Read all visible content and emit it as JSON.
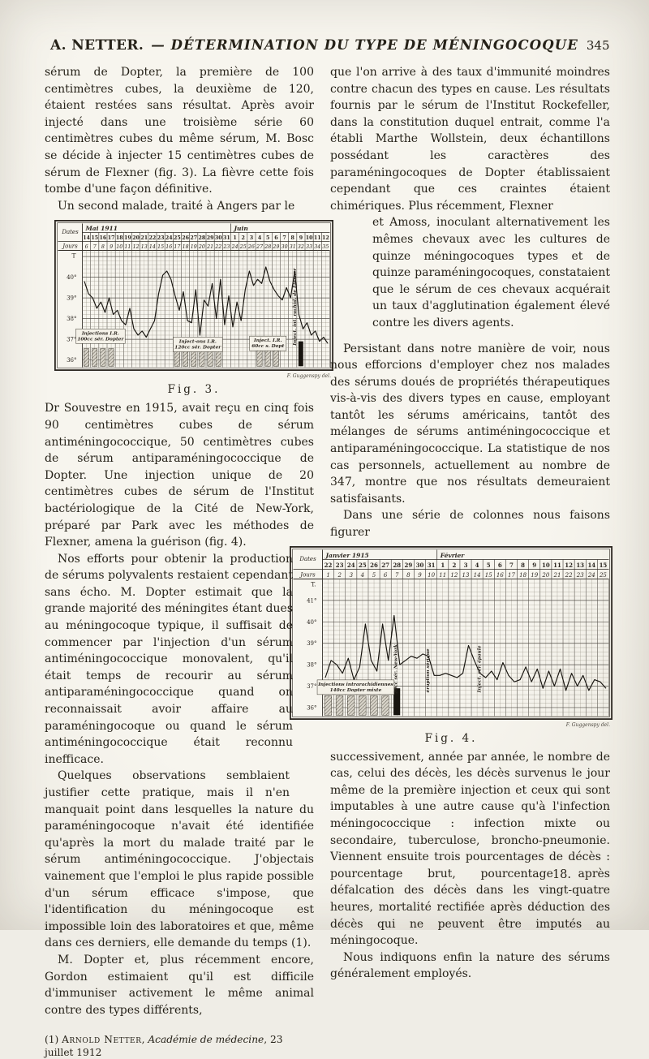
{
  "header": {
    "author": "A. NETTER.",
    "title": "— DÉTERMINATION DU TYPE DE MÉNINGOCOQUE",
    "page_number": "345"
  },
  "left_column": {
    "para1": "sérum de Dopter, la première de 100 centimètres cubes, la deuxième de 120, étaient restées sans résultat. Après avoir injecté dans une troisième série 60 centimètres cubes du même sérum, M. Bosc se décide à injecter 15 centimètres cubes de sérum de Flexner (fig. 3). La fièvre cette fois tombe d'une façon définitive.",
    "para2": "Un second malade, traité à Angers par le",
    "para3": "Dr Souvestre en 1915, avait reçu en cinq fois 90 centimètres cubes de sérum antiméningococcique, 50 centimètres cubes de sérum antiparaméningococcique de Dopter. Une injection unique de 20 centimètres cubes de sérum de l'Institut bactériologique de la Cité de New-York, préparé par Park avec les méthodes de Flexner, amena la guérison (fig. 4).",
    "para4": "Nos efforts pour obtenir la production de sérums polyvalents restaient cependant sans écho. M. Dopter estimait que la grande majorité des méningites étant dues au méningocoque typique, il suffisait de commencer par l'injection d'un sérum antiméningococcique monovalent, qu'il était temps de recourir au sérum antiparaméningococcique quand on reconnaissait avoir affaire au paraméningocoque ou quand le sérum antiméningococcique était reconnu inefficace.",
    "para5": "Quelques observations semblaient justifier cette pratique, mais il n'en manquait point dans lesquelles la nature du paraméningocoque n'avait été identifiée qu'après la mort du malade traité par le sérum antiméningococcique. J'objectais vainement que l'emploi le plus rapide possible d'un sérum efficace s'impose, que l'identification du méningocoque est impossible loin des laboratoires et que, même dans ces derniers, elle demande du temps (1).",
    "para6": "M. Dopter et, plus récemment encore, Gordon estimaient qu'il est difficile d'immuniser activement le même animal contre des types différents,",
    "footnote": {
      "marker": "(1) ",
      "author": "Arnold Netter",
      "sep": ", ",
      "source": "Académie de médecine",
      "tail": ", 23 juillet 1912"
    }
  },
  "right_column": {
    "para1a": "que l'on arrive à des taux d'immunité moindres contre chacun des types en cause. Les résultats fournis par le sérum de l'Institut Rockefeller, dans la constitution duquel entrait, comme l'a établi Marthe Wollstein, deux échantillons possédant les caractères des paraméningocoques de Dopter établissaient cependant que ces craintes étaient chimériques. Plus récemment, Flexner",
    "para1b": "et Amoss, inoculant alternativement les mêmes chevaux avec les cultures de quinze méningocoques types et de quinze paraméningocoques, constataient que le sérum de ces chevaux acquérait un taux d'agglutination également élevé contre les divers agents.",
    "para2": "Persistant dans notre manière de voir, nous nous efforcions d'employer chez nos malades des sérums doués de propriétés thérapeutiques vis-à-vis des divers types en cause, employant tantôt les sérums américains, tantôt des mélanges de sérums antiméningococcique et antiparaméningococcique. La statistique de nos cas personnels, actuellement au nombre de 347, montre que nos résultats demeuraient satisfaisants.",
    "para3": "Dans une série de colonnes nous faisons figurer",
    "para4": "successivement, année par année, le nombre de cas, celui des décès, les décès survenus le jour même de la première injection et ceux qui sont imputables à une autre cause qu'à l'infection méningococcique : infection mixte ou secondaire, tuberculose, broncho-pneumonie. Viennent ensuite trois pourcentages de décès : pourcentage brut, pourcentage après défalcation des décès dans les vingt-quatre heures, mortalité rectifiée après déduction des décès qui ne peuvent être imputés au méningocoque.",
    "para5": "Nous indiquons enfin la nature des sérums généralement employés.",
    "page_mark": "18."
  },
  "figures": {
    "fig3": {
      "caption": "Fig. 3."
    },
    "fig4": {
      "caption": "Fig. 4."
    }
  },
  "chart_data": [
    {
      "type": "line",
      "figure": "Fig. 3.",
      "row_labels": {
        "dates": "Dates",
        "jours": "Jours",
        "temp": "T"
      },
      "months": [
        {
          "label": "Mai 1911",
          "days": 18
        },
        {
          "label": "Juin",
          "days": 12
        }
      ],
      "dates": [
        14,
        15,
        16,
        17,
        18,
        19,
        20,
        21,
        22,
        23,
        24,
        25,
        26,
        27,
        28,
        29,
        30,
        31,
        1,
        2,
        3,
        4,
        5,
        6,
        7,
        8,
        9,
        10,
        11,
        12
      ],
      "jours": [
        6,
        7,
        8,
        9,
        10,
        11,
        12,
        13,
        14,
        15,
        16,
        17,
        18,
        19,
        20,
        21,
        22,
        23,
        24,
        25,
        26,
        27,
        28,
        29,
        30,
        31,
        32,
        33,
        34,
        35
      ],
      "y_ticks": [
        "40°",
        "39°",
        "38°",
        "37°",
        "36°"
      ],
      "ylim": [
        36,
        41
      ],
      "readings_per_day": 2,
      "temperatures": [
        39.8,
        39.2,
        39.0,
        38.5,
        38.8,
        38.3,
        39.0,
        38.2,
        38.4,
        37.9,
        37.7,
        38.5,
        37.5,
        37.2,
        37.4,
        37.1,
        37.5,
        37.9,
        39.2,
        40.1,
        40.3,
        39.9,
        39.1,
        38.4,
        39.3,
        37.9,
        37.8,
        39.4,
        37.2,
        38.9,
        38.6,
        39.7,
        38.0,
        39.9,
        37.7,
        39.1,
        37.6,
        38.8,
        37.9,
        39.4,
        40.3,
        39.6,
        39.9,
        39.7,
        40.5,
        39.8,
        39.4,
        39.1,
        38.9,
        39.5,
        39.0,
        40.3,
        38.2,
        37.5,
        37.8,
        37.2,
        37.4,
        36.9,
        37.1,
        36.8
      ],
      "injections": {
        "hatched_days": [
          1,
          2,
          3,
          4,
          12,
          13,
          14,
          15,
          16,
          17,
          22,
          23,
          24
        ],
        "solid_days": [
          27
        ]
      },
      "annotations": [
        {
          "kind": "box",
          "day": 2.7,
          "temp": 37.15,
          "lines": [
            "Injections I.R.",
            "100cc sér. Dopter"
          ]
        },
        {
          "kind": "box",
          "day": 14.5,
          "temp": 36.75,
          "lines": [
            "Inject-ons I.R.",
            "120cc sér. Dopter"
          ]
        },
        {
          "kind": "box",
          "day": 23.0,
          "temp": 36.8,
          "lines": [
            "Inject. I.R.",
            "60cc s. Dopt"
          ]
        },
        {
          "kind": "vertical",
          "day": 26.4,
          "temp": 36.7,
          "lines": [
            "Inject. int. rachid. de Flexner"
          ]
        }
      ],
      "signature": "F. Guggenspy del."
    },
    {
      "type": "line",
      "figure": "Fig. 4.",
      "row_labels": {
        "dates": "Dates",
        "jours": "Jours",
        "temp": "T."
      },
      "months": [
        {
          "label": "Janvier 1915",
          "days": 10
        },
        {
          "label": "Février",
          "days": 15
        }
      ],
      "dates": [
        22,
        23,
        24,
        25,
        26,
        27,
        28,
        29,
        30,
        31,
        1,
        2,
        3,
        4,
        5,
        6,
        7,
        8,
        9,
        10,
        11,
        12,
        13,
        14,
        15
      ],
      "jours": [
        1,
        2,
        3,
        4,
        5,
        6,
        7,
        8,
        9,
        10,
        11,
        12,
        13,
        14,
        15,
        16,
        17,
        18,
        19,
        20,
        21,
        22,
        23,
        24,
        25
      ],
      "y_ticks": [
        "41°",
        "40°",
        "39°",
        "38°",
        "37°",
        "36°"
      ],
      "ylim": [
        36,
        42
      ],
      "readings_per_day": 2,
      "temperatures": [
        37.4,
        38.2,
        38.0,
        37.6,
        38.3,
        37.3,
        37.9,
        39.9,
        38.2,
        37.7,
        39.9,
        38.2,
        40.3,
        38.0,
        38.2,
        38.4,
        38.3,
        38.5,
        38.4,
        37.5,
        37.5,
        37.6,
        37.5,
        37.4,
        37.6,
        38.9,
        38.2,
        37.6,
        37.4,
        37.7,
        37.3,
        38.1,
        37.5,
        37.2,
        37.3,
        37.9,
        37.2,
        37.8,
        36.9,
        37.7,
        37.0,
        37.8,
        36.8,
        37.6,
        37.0,
        37.5,
        36.8,
        37.3,
        37.2,
        36.9
      ],
      "injections": {
        "hatched_days": [
          1,
          2,
          3,
          4,
          5,
          6
        ],
        "solid_days": [
          7
        ]
      },
      "annotations": [
        {
          "kind": "box",
          "day": 3.4,
          "temp": 36.95,
          "lines": [
            "Injections intrarachidiennes",
            "140cc Dopter mixte"
          ]
        },
        {
          "kind": "vertical",
          "day": 7.0,
          "temp": 36.65,
          "lines": [
            "20cc sér. New-York"
          ]
        },
        {
          "kind": "vertical",
          "day": 9.8,
          "temp": 36.7,
          "lines": [
            "éruption sérique"
          ]
        },
        {
          "kind": "vertical",
          "day": 14.3,
          "temp": 36.7,
          "lines": [
            "Inject. sér. épaule"
          ]
        }
      ],
      "signature": "F. Guggenspy del."
    }
  ]
}
